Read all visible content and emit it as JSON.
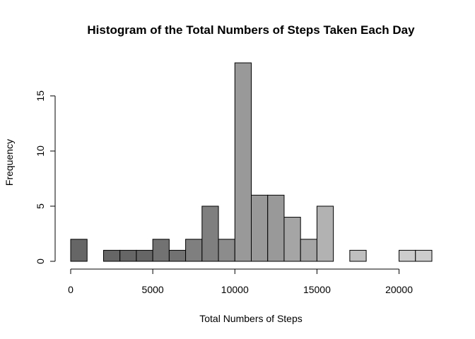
{
  "chart_data": {
    "type": "bar",
    "title": "Histogram of the Total Numbers of Steps Taken Each Day",
    "xlabel": "Total Numbers of Steps",
    "ylabel": "Frequency",
    "bin_width": 1000,
    "bin_starts": [
      0,
      1000,
      2000,
      3000,
      4000,
      5000,
      6000,
      7000,
      8000,
      9000,
      10000,
      11000,
      12000,
      13000,
      14000,
      15000,
      16000,
      17000,
      18000,
      19000,
      20000,
      21000
    ],
    "values": [
      2,
      0,
      1,
      1,
      1,
      2,
      1,
      2,
      5,
      2,
      18,
      6,
      6,
      4,
      2,
      5,
      0,
      1,
      0,
      0,
      1,
      1
    ],
    "bar_colors": [
      "#666666",
      "#666666",
      "#666666",
      "#666666",
      "#666666",
      "#727272",
      "#727272",
      "#7f7f7f",
      "#7f7f7f",
      "#8c8c8c",
      "#999999",
      "#999999",
      "#999999",
      "#a5a5a5",
      "#a5a5a5",
      "#b2b2b2",
      "#b2b2b2",
      "#bfbfbf",
      "#bfbfbf",
      "#cccccc",
      "#cccccc",
      "#cccccc"
    ],
    "xlim": [
      0,
      22000
    ],
    "ylim": [
      0,
      18
    ],
    "x_ticks": [
      0,
      5000,
      10000,
      15000,
      20000
    ],
    "x_tick_labels": [
      "0",
      "5000",
      "10000",
      "15000",
      "20000"
    ],
    "y_ticks": [
      0,
      5,
      10,
      15
    ],
    "y_tick_labels": [
      "0",
      "5",
      "10",
      "15"
    ]
  }
}
